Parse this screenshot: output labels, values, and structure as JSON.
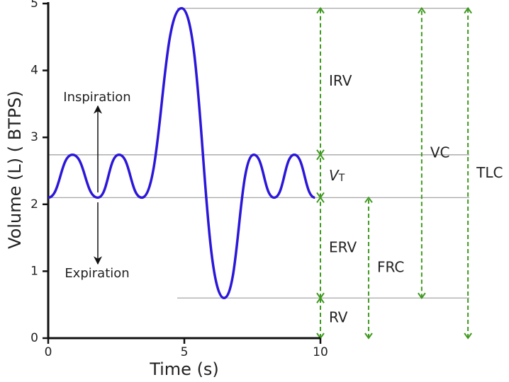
{
  "chart_data": {
    "type": "line",
    "x_label": "Time (s)",
    "y_label": "Volume (L) ( BTPS)",
    "x": [
      0,
      0.89,
      1.82,
      2.6,
      3.44,
      4.9,
      6.46,
      7.55,
      8.3,
      9.04,
      9.8
    ],
    "series": [
      {
        "color": "#2b17d9",
        "values": [
          2.1,
          2.74,
          2.1,
          2.74,
          2.1,
          4.93,
          0.6,
          2.74,
          2.1,
          2.74,
          2.1
        ]
      }
    ],
    "xlim": [
      0,
      10
    ],
    "ylim": [
      0,
      5
    ],
    "xticks": [
      0,
      5,
      10
    ],
    "yticks": [
      0,
      1,
      2,
      3,
      4,
      5
    ],
    "reference_lines": {
      "color": "#a6a6a6",
      "lines": [
        {
          "value": 4.93,
          "x_range": [
            4.74,
            15.47
          ]
        },
        {
          "value": 2.74,
          "x_range": [
            0,
            15.47
          ]
        },
        {
          "value": 2.1,
          "x_range": [
            0,
            15.47
          ]
        },
        {
          "value": 0.6,
          "x_range": [
            4.74,
            15.47
          ]
        }
      ]
    },
    "volumes": {
      "color": "#3f9a1f",
      "items": [
        {
          "label": "IRV",
          "x": 10,
          "from": 2.74,
          "to": 4.93
        },
        {
          "label": "V",
          "label_sub": "T",
          "x": 10,
          "from": 2.1,
          "to": 2.74
        },
        {
          "label": "ERV",
          "x": 10,
          "from": 0.6,
          "to": 2.1
        },
        {
          "label": "RV",
          "x": 10,
          "from": 0,
          "to": 0.6
        },
        {
          "label": "FRC",
          "x": 11.77,
          "from": 0,
          "to": 2.1
        },
        {
          "label": "VC",
          "x": 13.72,
          "from": 0.6,
          "to": 4.93
        },
        {
          "label": "TLC",
          "x": 15.42,
          "from": 0,
          "to": 4.93
        }
      ]
    },
    "annotations": {
      "inspiration": "Inspiration",
      "expiration": "Expiration"
    }
  }
}
